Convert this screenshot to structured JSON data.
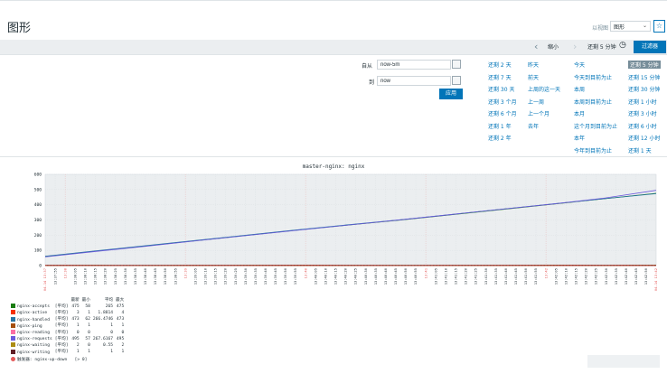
{
  "header": {
    "title": "图形",
    "view_as_label": "以视图",
    "view_as_value": "图形"
  },
  "filter_bar": {
    "zoom_out": "缩小",
    "range": "还剩 5 分钟",
    "filter_tab": "过滤器"
  },
  "time_filter": {
    "from_label": "自从",
    "from_value": "now-5m",
    "to_label": "到",
    "to_value": "now",
    "apply": "应用"
  },
  "quick_ranges": [
    [
      "还剩 2 天",
      "还剩 7 天",
      "还剩 30 天",
      "还剩 3 个月",
      "还剩 6 个月",
      "还剩 1 年",
      "还剩 2 年"
    ],
    [
      "昨天",
      "前天",
      "上周的这一天",
      "上一周",
      "上一个月",
      "去年"
    ],
    [
      "今天",
      "今天到目前为止",
      "本周",
      "本周到目前为止",
      "本月",
      "这个月到目前为止",
      "本年",
      "今年到目前为止"
    ],
    [
      "还剩 5 分钟",
      "还剩 15 分钟",
      "还剩 30 分钟",
      "还剩 1 小时",
      "还剩 3 小时",
      "还剩 6 小时",
      "还剩 12 小时",
      "还剩 1 天"
    ]
  ],
  "selected_quick_range": "还剩 5 分钟",
  "chart_data": {
    "type": "line",
    "title": "master-nginx: nginx",
    "xlabel": "",
    "ylabel": "",
    "ylim": [
      0,
      600
    ],
    "yticks": [
      0,
      100,
      200,
      300,
      400,
      500,
      600
    ],
    "grid": true,
    "x_start_label": "04-14 13:37",
    "x_end_label": "04-14 13:42",
    "xticks": [
      "13:37:55",
      "13:38",
      "13:38:05",
      "13:38:10",
      "13:38:15",
      "13:38:20",
      "13:38:25",
      "13:38:30",
      "13:38:35",
      "13:38:40",
      "13:38:45",
      "13:38:50",
      "13:38:55",
      "13:39",
      "13:39:05",
      "13:39:10",
      "13:39:15",
      "13:39:20",
      "13:39:25",
      "13:39:30",
      "13:39:35",
      "13:39:40",
      "13:39:45",
      "13:39:50",
      "13:39:55",
      "13:40",
      "13:40:05",
      "13:40:10",
      "13:40:15",
      "13:40:20",
      "13:40:25",
      "13:40:30",
      "13:40:35",
      "13:40:40",
      "13:40:45",
      "13:40:50",
      "13:40:55",
      "13:41",
      "13:41:05",
      "13:41:10",
      "13:41:15",
      "13:41:20",
      "13:41:25",
      "13:41:30",
      "13:41:35",
      "13:41:40",
      "13:41:45",
      "13:41:50",
      "13:41:55",
      "13:42",
      "13:42:05",
      "13:42:10",
      "13:42:15",
      "13:42:20",
      "13:42:25",
      "13:42:30",
      "13:42:35",
      "13:42:40",
      "13:42:45",
      "13:42:50"
    ],
    "red_ticks": [
      "13:38",
      "13:39",
      "13:40",
      "13:41",
      "13:42"
    ],
    "x": [
      0,
      5,
      10,
      15,
      20,
      25,
      30,
      35,
      40,
      45,
      50,
      55,
      60
    ],
    "series": [
      {
        "name": "nginx-accepts",
        "agg": "[平均]",
        "last": "475",
        "min": "58",
        "avg": "265",
        "max": "475",
        "color": "#1a7c11",
        "values": [
          60,
          95,
          130,
          165,
          200,
          235,
          268,
          300,
          335,
          370,
          405,
          440,
          475
        ]
      },
      {
        "name": "nginx-active",
        "agg": "[平均]",
        "last": "3",
        "min": "1",
        "avg": "1.8814",
        "max": "4",
        "color": "#f63100",
        "values": [
          2,
          2,
          1,
          2,
          2,
          3,
          2,
          1,
          2,
          2,
          3,
          2,
          3
        ]
      },
      {
        "name": "nginx-handled",
        "agg": "[平均]",
        "last": "473",
        "min": "62",
        "avg": "266.4746",
        "max": "473",
        "color": "#2774a4",
        "values": [
          62,
          97,
          132,
          167,
          202,
          237,
          270,
          302,
          337,
          372,
          407,
          440,
          473
        ]
      },
      {
        "name": "nginx-ping",
        "agg": "[平均]",
        "last": "1",
        "min": "1",
        "avg": "1",
        "max": "1",
        "color": "#a54f10",
        "values": [
          1,
          1,
          1,
          1,
          1,
          1,
          1,
          1,
          1,
          1,
          1,
          1,
          1
        ]
      },
      {
        "name": "nginx-reading",
        "agg": "[平均]",
        "last": "0",
        "min": "0",
        "avg": "0",
        "max": "0",
        "color": "#fc6ea3",
        "values": [
          0,
          0,
          0,
          0,
          0,
          0,
          0,
          0,
          0,
          0,
          0,
          0,
          0
        ]
      },
      {
        "name": "nginx-requests",
        "agg": "[平均]",
        "last": "495",
        "min": "57",
        "avg": "267.6167",
        "max": "495",
        "color": "#6c59dc",
        "values": [
          57,
          93,
          128,
          164,
          199,
          234,
          268,
          302,
          337,
          372,
          406,
          445,
          495
        ]
      },
      {
        "name": "nginx-waiting",
        "agg": "[平均]",
        "last": "2",
        "min": "0",
        "avg": "0.55",
        "max": "2",
        "color": "#ac8c14",
        "values": [
          0,
          1,
          0,
          0,
          1,
          0,
          0,
          1,
          0,
          0,
          1,
          0,
          2
        ]
      },
      {
        "name": "nginx-writing",
        "agg": "[平均]",
        "last": "1",
        "min": "1",
        "avg": "1",
        "max": "1",
        "color": "#611f27",
        "values": [
          1,
          1,
          1,
          1,
          1,
          1,
          1,
          1,
          1,
          1,
          1,
          1,
          1
        ]
      }
    ],
    "legend_headers": {
      "last": "最新",
      "min": "最小",
      "avg": "平均",
      "max": "最大"
    }
  },
  "trigger": {
    "label": "触发器: nginx-up-down",
    "condition": "[> 0]"
  }
}
